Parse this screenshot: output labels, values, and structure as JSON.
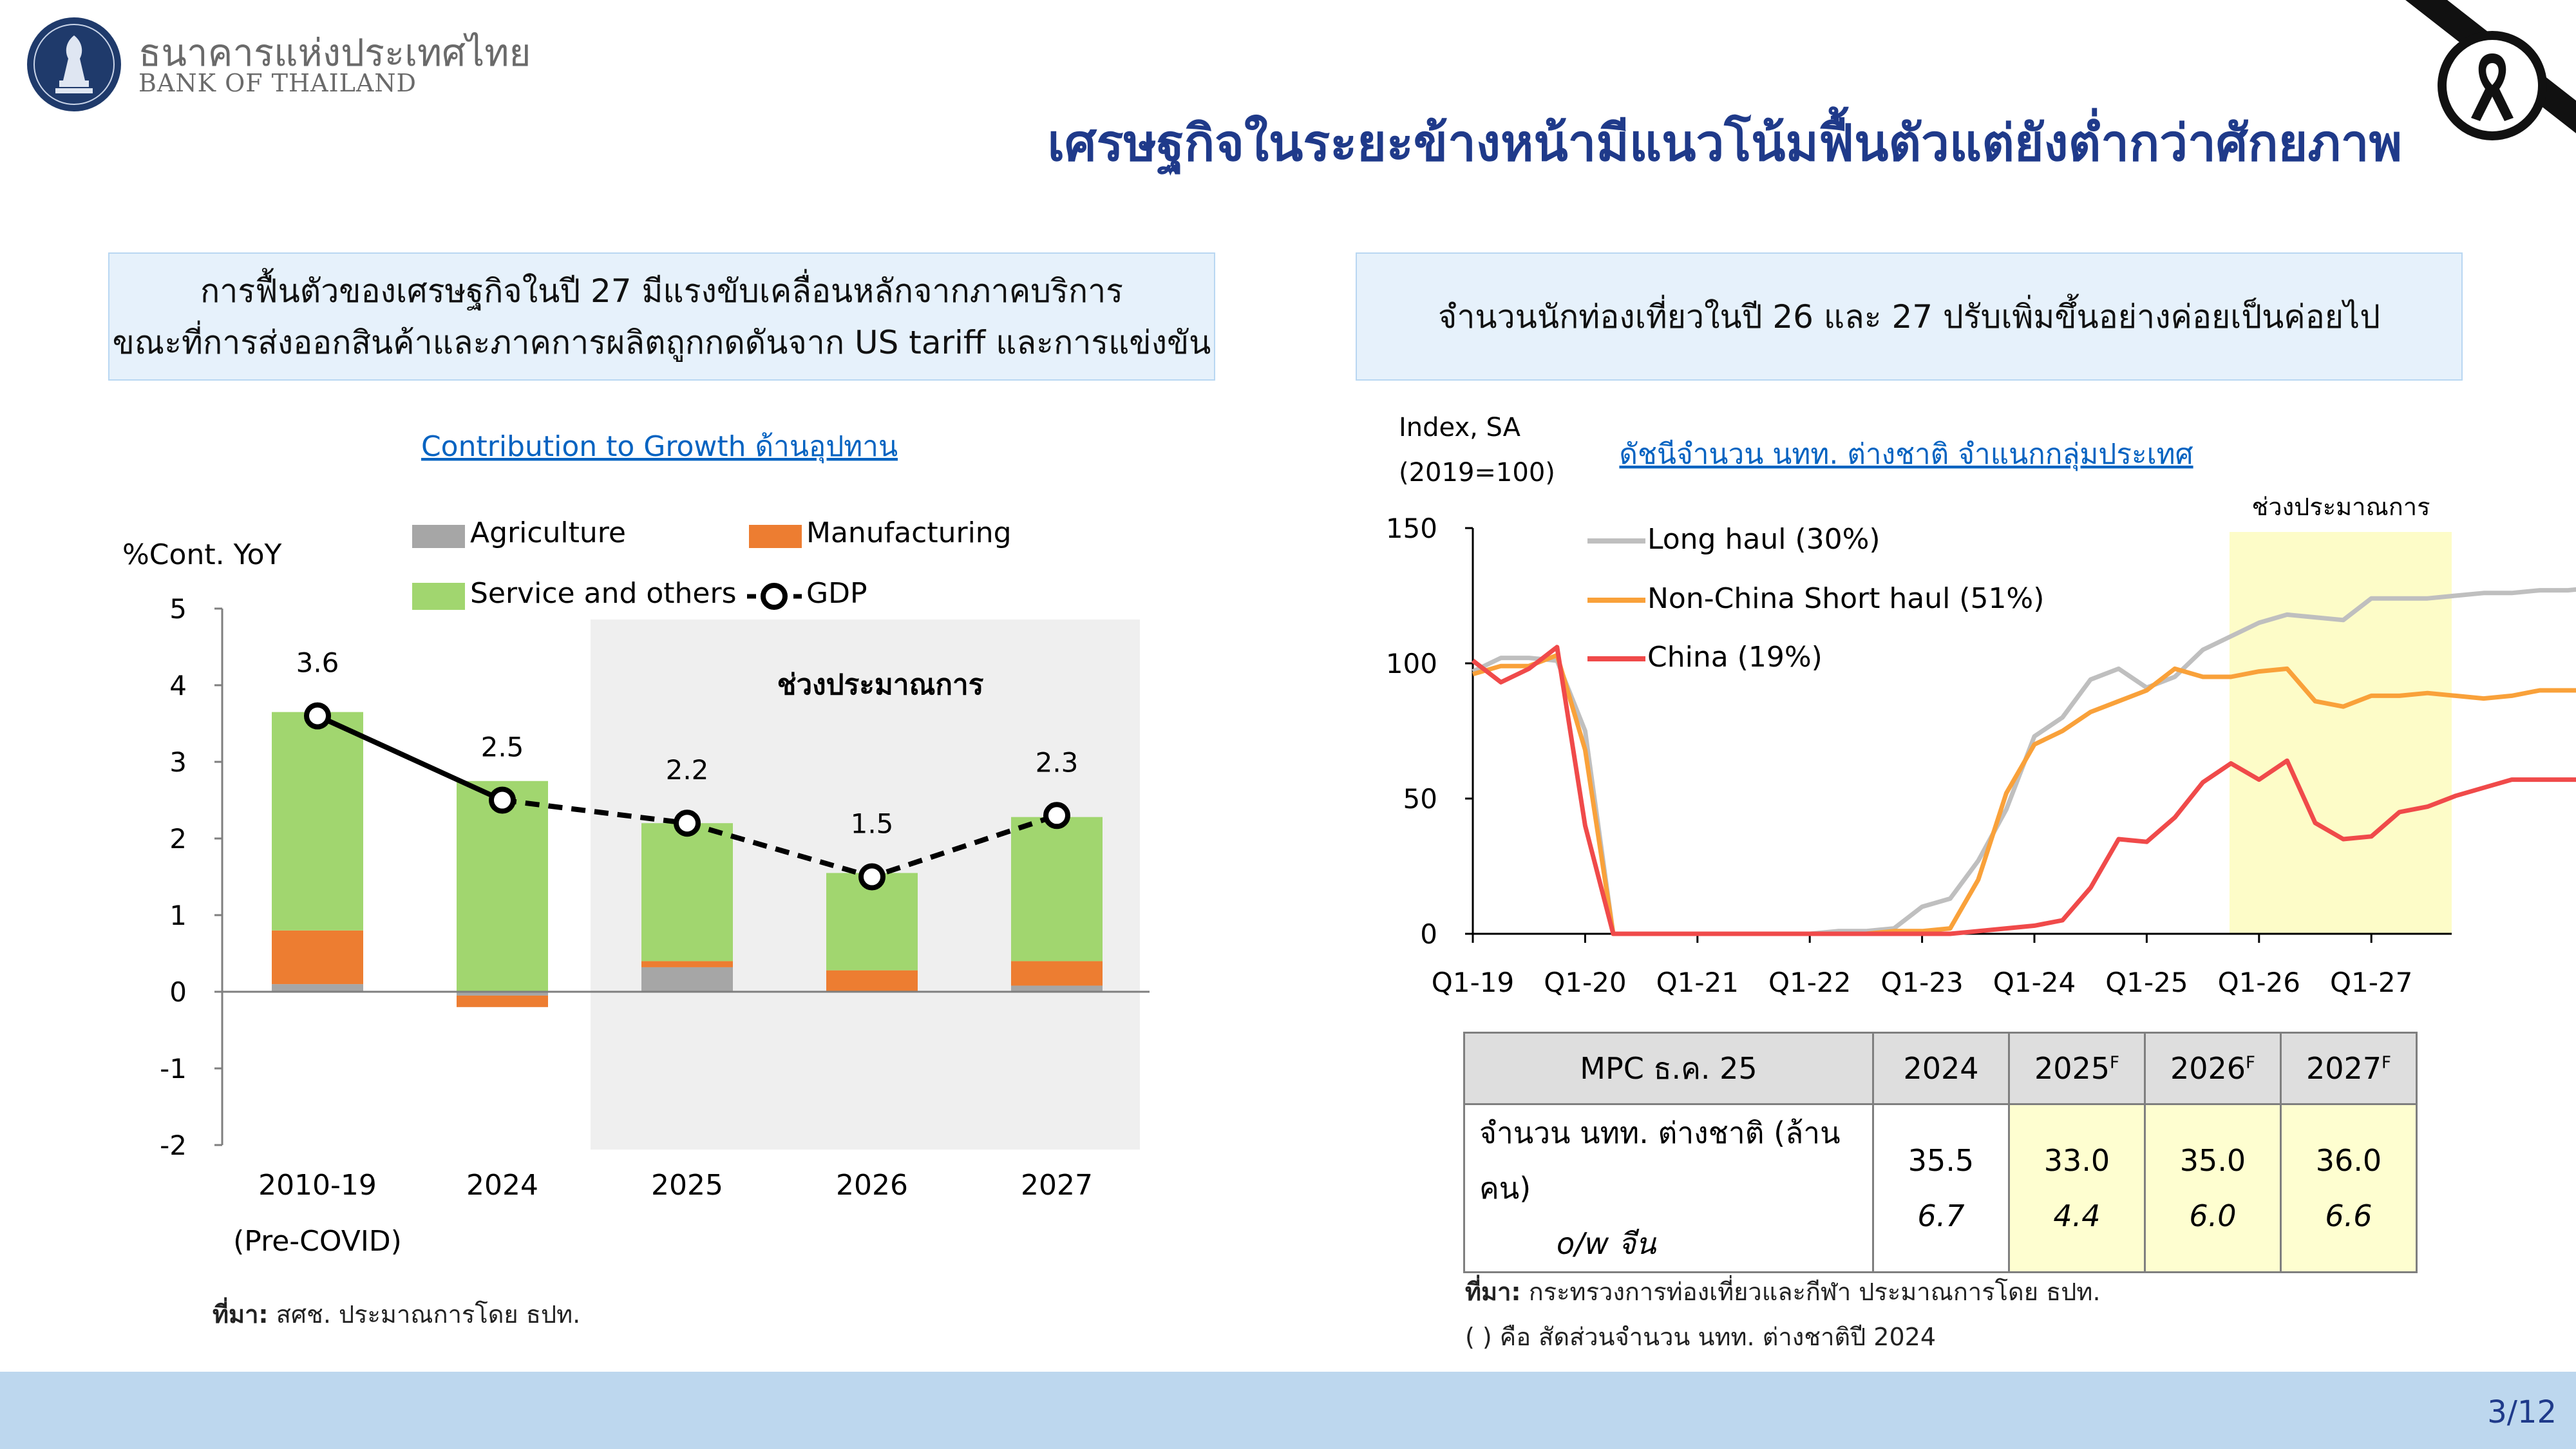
{
  "header": {
    "bank_name_th": "ธนาคารแห่งประเทศไทย",
    "bank_name_en": "BANK OF THAILAND",
    "title": "เศรษฐกิจในระยะข้างหน้ามีแนวโน้มฟื้นตัวแต่ยังต่ำกว่าศักยภาพ"
  },
  "left_panel": {
    "headline_line1": "การฟื้นตัวของเศรษฐกิจในปี 27 มีแรงขับเคลื่อนหลักจากภาคบริการ",
    "headline_line2": "ขณะที่การส่งออกสินค้าและภาคการผลิตถูกกดดันจาก US tariff และการแข่งขัน",
    "chart_title": "Contribution to Growth ด้านอุปทาน",
    "source_label": "ที่มา:",
    "source_text": " สศช. ประมาณการโดย ธปท."
  },
  "right_panel": {
    "headline": "จำนวนนักท่องเที่ยวในปี 26 และ 27 ปรับเพิ่มขึ้นอย่างค่อยเป็นค่อยไป",
    "chart_title": "ดัชนีจำนวน นทท. ต่างชาติ จำแนกกลุ่มประเทศ",
    "source_label": "ที่มา:",
    "source_text": " กระทรวงการท่องเที่ยวและกีฬา ประมาณการโดย ธปท.",
    "note": "( ) คือ สัดส่วนจำนวน นทท. ต่างชาติปี 2024"
  },
  "table": {
    "header_label": "MPC ธ.ค. 25",
    "years": [
      "2024",
      "2025",
      "2026",
      "2027"
    ],
    "forecast_mark": "F",
    "row_label_1": "จำนวน นทท. ต่างชาติ (ล้านคน)",
    "row_label_2": "o/w จีน",
    "values_total": [
      "35.5",
      "33.0",
      "35.0",
      "36.0"
    ],
    "values_china": [
      "6.7",
      "4.4",
      "6.0",
      "6.6"
    ]
  },
  "footer": {
    "page": "3/12"
  },
  "colors": {
    "agriculture": "#a6a6a6",
    "manufacturing": "#ed7d31",
    "service": "#a1d66f",
    "gdp": "#000000",
    "long_haul": "#bfbfbf",
    "short_haul": "#f9a13a",
    "china": "#f04a4a",
    "forecast_shade_left": "#efefef",
    "forecast_shade_right": "#fdfcc8",
    "title_blue": "#1f3a8a"
  },
  "chart_data": [
    {
      "type": "bar",
      "title": "Contribution to Growth ด้านอุปทาน",
      "ylabel": "%Cont. YoY",
      "ylim": [
        -2,
        5
      ],
      "yticks": [
        "5",
        "4",
        "3",
        "2",
        "1",
        "0",
        "-1",
        "-2"
      ],
      "categories": [
        "2010-19",
        "2024",
        "2025",
        "2026",
        "2027"
      ],
      "category_sublabel": "(Pre-COVID)",
      "forecast_label": "ช่วงประมาณการ",
      "series": [
        {
          "name": "Agriculture",
          "values": [
            0.1,
            -0.05,
            0.32,
            0.0,
            0.08
          ]
        },
        {
          "name": "Manufacturing",
          "values": [
            0.7,
            -0.15,
            0.08,
            0.28,
            0.32
          ]
        },
        {
          "name": "Service and others",
          "values": [
            2.85,
            2.75,
            1.8,
            1.27,
            1.88
          ]
        },
        {
          "name": "GDP",
          "type": "line",
          "values": [
            3.6,
            2.5,
            2.2,
            1.5,
            2.3
          ],
          "labels": [
            "3.6",
            "2.5",
            "2.2",
            "1.5",
            "2.3"
          ]
        }
      ]
    },
    {
      "type": "line",
      "title": "ดัชนีจำนวน นทท. ต่างชาติ จำแนกกลุ่มประเทศ",
      "ylabel_line1": "Index, SA",
      "ylabel_line2": "(2019=100)",
      "ylim": [
        0,
        150
      ],
      "yticks": [
        "150",
        "100",
        "50",
        "0"
      ],
      "xticks": [
        "Q1-19",
        "Q1-20",
        "Q1-21",
        "Q1-22",
        "Q1-23",
        "Q1-24",
        "Q1-25",
        "Q1-26",
        "Q1-27"
      ],
      "forecast_label": "ช่วงประมาณการ",
      "series": [
        {
          "name": "Long haul (30%)",
          "values": [
            97,
            102,
            102,
            101,
            75,
            0,
            0,
            0,
            0,
            0,
            0,
            0,
            0,
            1,
            1,
            2,
            10,
            13,
            27,
            46,
            73,
            80,
            94,
            98,
            91,
            95,
            105,
            110,
            115,
            118,
            117,
            116,
            124,
            124,
            124,
            125,
            126,
            126,
            127,
            127,
            128,
            129
          ]
        },
        {
          "name": "Non-China Short haul (51%)",
          "values": [
            96,
            99,
            99,
            103,
            68,
            0,
            0,
            0,
            0,
            0,
            0,
            0,
            0,
            0,
            0,
            1,
            1,
            2,
            20,
            52,
            70,
            75,
            82,
            86,
            90,
            98,
            95,
            95,
            97,
            98,
            86,
            84,
            88,
            88,
            89,
            88,
            87,
            88,
            90,
            90,
            90,
            90
          ]
        },
        {
          "name": "China (19%)",
          "values": [
            101,
            93,
            98,
            106,
            40,
            0,
            0,
            0,
            0,
            0,
            0,
            0,
            0,
            0,
            0,
            0,
            0,
            0,
            1,
            2,
            3,
            5,
            17,
            35,
            34,
            43,
            56,
            63,
            57,
            64,
            41,
            35,
            36,
            45,
            47,
            51,
            54,
            57,
            57,
            57,
            57,
            57
          ]
        }
      ]
    }
  ]
}
